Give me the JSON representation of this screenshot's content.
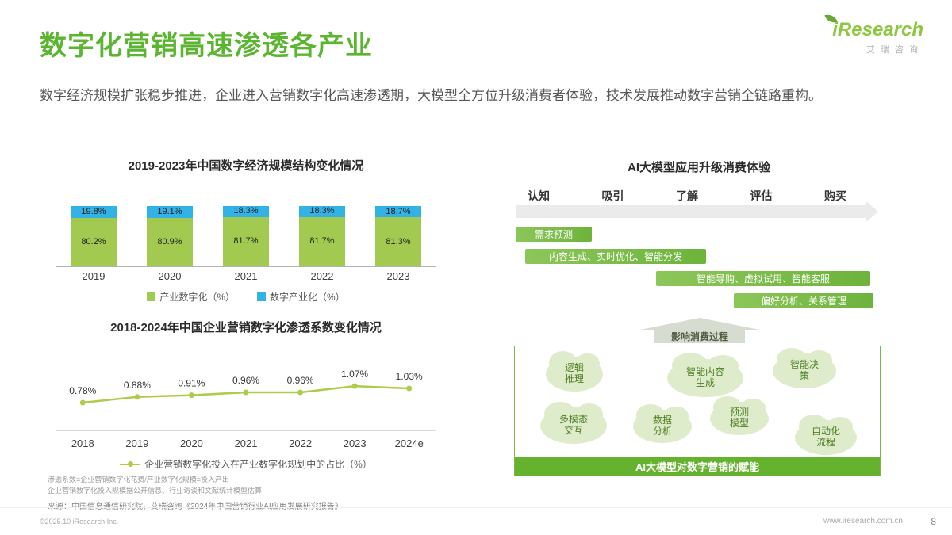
{
  "header": {
    "title": "数字化营销高速渗透各产业",
    "subtitle": "数字经济规模扩张稳步推进，企业进入营销数字化高速渗透期，大模型全方位升级消费者体验，技术发展推动数字营销全链路重构。",
    "logo_text": "iResearch",
    "logo_sub": "艾瑞咨询"
  },
  "chart_data": [
    {
      "type": "bar",
      "stacked": true,
      "title": "2019-2023年中国数字经济规模结构变化情况",
      "categories": [
        "2019",
        "2020",
        "2021",
        "2022",
        "2023"
      ],
      "series": [
        {
          "name": "产业数字化（%）",
          "values": [
            80.2,
            80.9,
            81.7,
            81.7,
            81.3
          ],
          "color": "#a2ca51"
        },
        {
          "name": "数字产业化（%）",
          "values": [
            19.8,
            19.1,
            18.3,
            18.3,
            18.7
          ],
          "color": "#33b3e5"
        }
      ],
      "ylim": [
        0,
        100
      ],
      "legend_position": "bottom"
    },
    {
      "type": "line",
      "title": "2018-2024年中国企业营销数字化渗透系数变化情况",
      "categories": [
        "2018",
        "2019",
        "2020",
        "2021",
        "2022",
        "2023",
        "2024e"
      ],
      "values": [
        0.78,
        0.88,
        0.91,
        0.96,
        0.96,
        1.07,
        1.03
      ],
      "labels": [
        "0.78%",
        "0.88%",
        "0.91%",
        "0.96%",
        "0.96%",
        "1.07%",
        "1.03%"
      ],
      "legend": "企业营销数字化投入在产业数字化规划中的占比（%）",
      "line_color": "#aecb4a",
      "legend_position": "bottom"
    }
  ],
  "footnotes": [
    "渗透系数=企业营销数字化花费/产业数字化规模=投入产出",
    "企业营销数字化投入规模据公开信息、行业访谈和文献统计模型估算"
  ],
  "source": "来源：中国信息通信研究院，艾瑞咨询《2024年中国营销行业AI应用发展研究报告》",
  "right_panel": {
    "title": "AI大模型应用升级消费体验",
    "stages": [
      "认知",
      "吸引",
      "了解",
      "评估",
      "购买"
    ],
    "bars": [
      "需求预测",
      "内容生成、实时优化、智能分发",
      "智能导购、虚拟试用、智能客服",
      "偏好分析、关系管理"
    ],
    "arrow_label": "影响消费过程",
    "clouds": [
      "逻辑\n推理",
      "智能内容\n生成",
      "智能决\n策",
      "多模态\n交互",
      "数据\n分析",
      "预测\n模型",
      "自动化\n流程"
    ],
    "bottom_bar": "AI大模型对数字营销的赋能"
  },
  "footer": {
    "left": "©2025.10 iResearch Inc.",
    "site": "www.iresearch.com.cn",
    "page": "8"
  }
}
